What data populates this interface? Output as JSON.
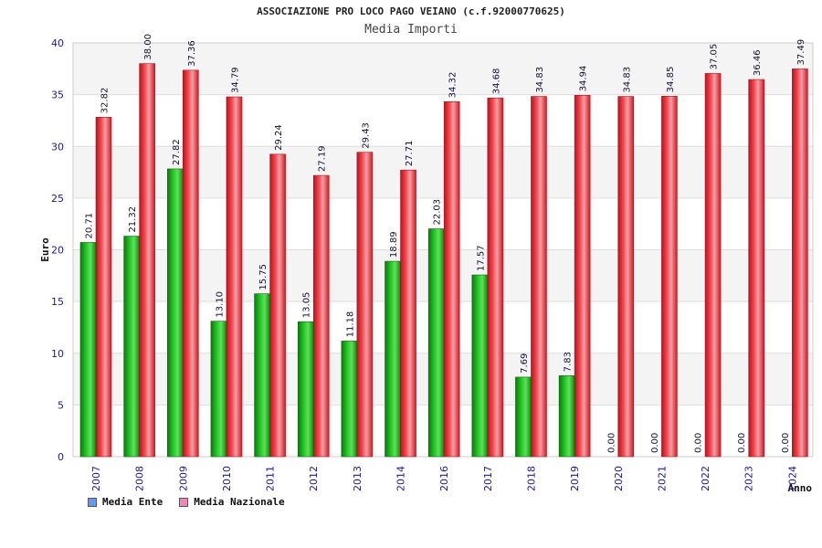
{
  "chart_data": {
    "type": "bar",
    "title": "ASSOCIAZIONE PRO LOCO PAGO VEIANO (c.f.92000770625)",
    "subtitle": "Media Importi",
    "xlabel": "Anno",
    "ylabel": "Euro",
    "ylim": [
      0,
      40
    ],
    "yticks": [
      "0",
      "5",
      "10",
      "15",
      "20",
      "25",
      "30",
      "35",
      "40"
    ],
    "categories": [
      "2007",
      "2008",
      "2009",
      "2010",
      "2011",
      "2012",
      "2013",
      "2014",
      "2016",
      "2017",
      "2018",
      "2019",
      "2020",
      "2021",
      "2022",
      "2023",
      "2024"
    ],
    "series": [
      {
        "name": "Media Ente",
        "color": "#22aa22",
        "values": [
          20.71,
          21.32,
          27.82,
          13.1,
          15.75,
          13.05,
          11.18,
          18.89,
          22.03,
          17.57,
          7.69,
          7.83,
          0.0,
          0.0,
          0.0,
          0.0,
          0.0
        ],
        "labels": [
          "20.71",
          "21.32",
          "27.82",
          "13.10",
          "15.75",
          "13.05",
          "11.18",
          "18.89",
          "22.03",
          "17.57",
          "7.69",
          "7.83",
          "0.00",
          "0.00",
          "0.00",
          "0.00",
          "0.00"
        ]
      },
      {
        "name": "Media Nazionale",
        "color": "#e8303a",
        "values": [
          32.82,
          38.0,
          37.36,
          34.79,
          29.24,
          27.19,
          29.43,
          27.71,
          34.32,
          34.68,
          34.83,
          34.94,
          34.83,
          34.85,
          37.05,
          36.46,
          37.49
        ],
        "labels": [
          "32.82",
          "38.00",
          "37.36",
          "34.79",
          "29.24",
          "27.19",
          "29.43",
          "27.71",
          "34.32",
          "34.68",
          "34.83",
          "34.94",
          "34.83",
          "34.85",
          "37.05",
          "36.46",
          "37.49"
        ]
      }
    ],
    "legend": {
      "placement": "bottom-left",
      "items": [
        {
          "label": "Media Ente",
          "color": "#6699ee"
        },
        {
          "label": "Media Nazionale",
          "color": "#ee88bb"
        }
      ]
    },
    "grid": true
  }
}
